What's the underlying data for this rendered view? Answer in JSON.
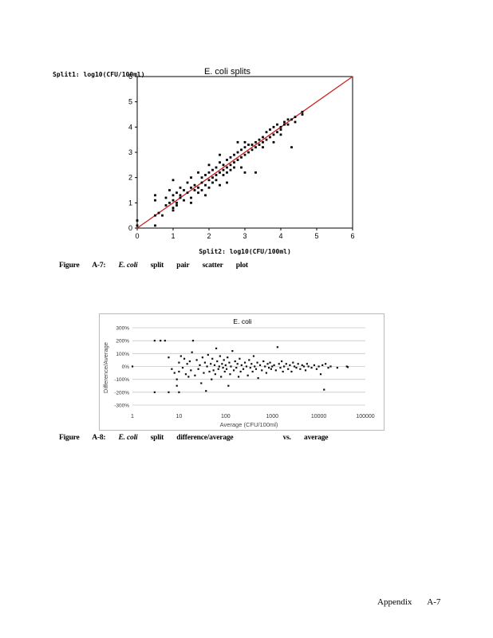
{
  "figure1": {
    "title": "E. coli splits",
    "y_axis_label": "Split1: log10(CFU/100ml)",
    "x_axis_label": "Split2: log10(CFU/100ml)",
    "caption": {
      "figure": "Figure",
      "number": "A-7:",
      "e": "E.",
      "coli": "coli",
      "w1": "split",
      "w2": "pair",
      "w3": "scatter",
      "w4": "plot"
    },
    "line_color": "#cc2222"
  },
  "figure2": {
    "title": "E. coli",
    "y_axis_label": "Difference/Average",
    "x_axis_label": "Average (CFU/100ml)",
    "caption": {
      "figure": "Figure",
      "number": "A-8:",
      "e": "E.",
      "coli": "coli",
      "w1": "split",
      "w2": "difference/average",
      "w3": "vs.",
      "w4": "average"
    }
  },
  "footer": {
    "appendix": "Appendix",
    "page": "A-7"
  },
  "chart_data": [
    {
      "type": "scatter",
      "title": "E. coli splits",
      "xlabel": "Split2: log10(CFU/100ml)",
      "ylabel": "Split1: log10(CFU/100ml)",
      "xlim": [
        0,
        6
      ],
      "ylim": [
        0,
        6
      ],
      "xticks": [
        "0",
        "1",
        "2",
        "3",
        "4",
        "5",
        "6"
      ],
      "yticks": [
        "0",
        "1",
        "2",
        "3",
        "4",
        "5",
        "6"
      ],
      "reference_line": "y = x",
      "grid": false,
      "points": [
        [
          0.0,
          0.3
        ],
        [
          0.0,
          0.1
        ],
        [
          0.5,
          1.3
        ],
        [
          0.5,
          1.1
        ],
        [
          0.5,
          0.5
        ],
        [
          0.5,
          0.1
        ],
        [
          0.6,
          0.6
        ],
        [
          0.7,
          0.5
        ],
        [
          0.8,
          0.9
        ],
        [
          0.8,
          1.2
        ],
        [
          0.9,
          1.0
        ],
        [
          0.9,
          1.5
        ],
        [
          1.0,
          0.8
        ],
        [
          1.0,
          1.1
        ],
        [
          1.0,
          1.3
        ],
        [
          1.0,
          0.7
        ],
        [
          1.0,
          1.9
        ],
        [
          1.1,
          1.0
        ],
        [
          1.1,
          1.4
        ],
        [
          1.1,
          0.9
        ],
        [
          1.2,
          1.2
        ],
        [
          1.2,
          1.6
        ],
        [
          1.2,
          1.3
        ],
        [
          1.3,
          1.1
        ],
        [
          1.3,
          1.5
        ],
        [
          1.4,
          1.4
        ],
        [
          1.4,
          1.8
        ],
        [
          1.5,
          1.2
        ],
        [
          1.5,
          1.6
        ],
        [
          1.5,
          1.0
        ],
        [
          1.5,
          2.0
        ],
        [
          1.6,
          1.5
        ],
        [
          1.6,
          1.7
        ],
        [
          1.7,
          1.6
        ],
        [
          1.7,
          1.4
        ],
        [
          1.7,
          2.2
        ],
        [
          1.8,
          1.8
        ],
        [
          1.8,
          1.5
        ],
        [
          1.8,
          2.0
        ],
        [
          1.9,
          1.7
        ],
        [
          1.9,
          2.1
        ],
        [
          1.9,
          1.3
        ],
        [
          2.0,
          1.9
        ],
        [
          2.0,
          2.2
        ],
        [
          2.0,
          1.6
        ],
        [
          2.0,
          2.5
        ],
        [
          2.1,
          2.0
        ],
        [
          2.1,
          1.8
        ],
        [
          2.1,
          2.3
        ],
        [
          2.2,
          2.1
        ],
        [
          2.2,
          2.4
        ],
        [
          2.2,
          1.9
        ],
        [
          2.3,
          2.2
        ],
        [
          2.3,
          2.6
        ],
        [
          2.3,
          1.7
        ],
        [
          2.3,
          2.9
        ],
        [
          2.4,
          2.3
        ],
        [
          2.4,
          2.1
        ],
        [
          2.4,
          2.5
        ],
        [
          2.5,
          2.4
        ],
        [
          2.5,
          2.7
        ],
        [
          2.5,
          2.2
        ],
        [
          2.5,
          1.8
        ],
        [
          2.6,
          2.5
        ],
        [
          2.6,
          2.8
        ],
        [
          2.6,
          2.3
        ],
        [
          2.7,
          2.6
        ],
        [
          2.7,
          2.9
        ],
        [
          2.7,
          2.4
        ],
        [
          2.8,
          2.7
        ],
        [
          2.8,
          3.0
        ],
        [
          2.8,
          3.4
        ],
        [
          2.9,
          2.8
        ],
        [
          2.9,
          3.1
        ],
        [
          2.9,
          2.4
        ],
        [
          3.0,
          2.9
        ],
        [
          3.0,
          3.2
        ],
        [
          3.0,
          3.4
        ],
        [
          3.0,
          2.2
        ],
        [
          3.1,
          3.0
        ],
        [
          3.1,
          3.3
        ],
        [
          3.2,
          3.1
        ],
        [
          3.2,
          3.3
        ],
        [
          3.3,
          3.2
        ],
        [
          3.3,
          3.4
        ],
        [
          3.3,
          2.2
        ],
        [
          3.4,
          3.3
        ],
        [
          3.4,
          3.5
        ],
        [
          3.5,
          3.4
        ],
        [
          3.5,
          3.6
        ],
        [
          3.5,
          3.2
        ],
        [
          3.6,
          3.5
        ],
        [
          3.6,
          3.8
        ],
        [
          3.7,
          3.6
        ],
        [
          3.7,
          3.9
        ],
        [
          3.8,
          3.7
        ],
        [
          3.8,
          4.0
        ],
        [
          3.8,
          3.4
        ],
        [
          3.9,
          3.8
        ],
        [
          3.9,
          4.1
        ],
        [
          4.0,
          3.9
        ],
        [
          4.0,
          4.0
        ],
        [
          4.0,
          3.7
        ],
        [
          4.1,
          4.1
        ],
        [
          4.1,
          4.2
        ],
        [
          4.2,
          4.1
        ],
        [
          4.2,
          4.3
        ],
        [
          4.3,
          3.2
        ],
        [
          4.3,
          4.3
        ],
        [
          4.4,
          4.2
        ],
        [
          4.4,
          4.4
        ],
        [
          4.6,
          4.5
        ],
        [
          4.6,
          4.6
        ]
      ]
    },
    {
      "type": "scatter",
      "title": "E. coli",
      "xlabel": "Average (CFU/100ml)",
      "ylabel": "Difference/Average",
      "x_scale": "log",
      "xlim": [
        1,
        100000
      ],
      "ylim": [
        -300,
        300
      ],
      "xticks": [
        "1",
        "10",
        "100",
        "1000",
        "10000",
        "100000"
      ],
      "yticks": [
        "300%",
        "200%",
        "100%",
        "0%",
        "-100%",
        "-200%",
        "-300%"
      ],
      "grid": true,
      "points": [
        [
          1,
          0
        ],
        [
          3,
          200
        ],
        [
          4,
          200
        ],
        [
          5,
          200
        ],
        [
          6,
          70
        ],
        [
          3,
          -200
        ],
        [
          6,
          -200
        ],
        [
          10,
          -200
        ],
        [
          7,
          -20
        ],
        [
          8,
          -50
        ],
        [
          9,
          -100
        ],
        [
          9,
          -150
        ],
        [
          10,
          30
        ],
        [
          10,
          -40
        ],
        [
          11,
          80
        ],
        [
          12,
          -10
        ],
        [
          13,
          60
        ],
        [
          14,
          -60
        ],
        [
          15,
          20
        ],
        [
          16,
          -80
        ],
        [
          17,
          40
        ],
        [
          18,
          -30
        ],
        [
          19,
          110
        ],
        [
          20,
          200
        ],
        [
          22,
          -70
        ],
        [
          24,
          50
        ],
        [
          26,
          -20
        ],
        [
          28,
          10
        ],
        [
          30,
          -130
        ],
        [
          32,
          70
        ],
        [
          34,
          -50
        ],
        [
          36,
          30
        ],
        [
          38,
          -190
        ],
        [
          40,
          0
        ],
        [
          42,
          90
        ],
        [
          45,
          -40
        ],
        [
          48,
          20
        ],
        [
          50,
          -100
        ],
        [
          52,
          60
        ],
        [
          55,
          -30
        ],
        [
          58,
          10
        ],
        [
          60,
          -60
        ],
        [
          63,
          140
        ],
        [
          66,
          40
        ],
        [
          70,
          -20
        ],
        [
          73,
          0
        ],
        [
          76,
          80
        ],
        [
          80,
          -80
        ],
        [
          84,
          20
        ],
        [
          88,
          -10
        ],
        [
          92,
          50
        ],
        [
          96,
          -40
        ],
        [
          100,
          10
        ],
        [
          105,
          -20
        ],
        [
          110,
          70
        ],
        [
          115,
          -150
        ],
        [
          120,
          30
        ],
        [
          125,
          -60
        ],
        [
          130,
          0
        ],
        [
          140,
          120
        ],
        [
          150,
          -30
        ],
        [
          160,
          40
        ],
        [
          170,
          -10
        ],
        [
          180,
          20
        ],
        [
          190,
          -80
        ],
        [
          200,
          60
        ],
        [
          210,
          -40
        ],
        [
          220,
          10
        ],
        [
          240,
          -20
        ],
        [
          260,
          30
        ],
        [
          280,
          0
        ],
        [
          300,
          -70
        ],
        [
          320,
          50
        ],
        [
          340,
          -10
        ],
        [
          360,
          20
        ],
        [
          380,
          -40
        ],
        [
          400,
          80
        ],
        [
          420,
          0
        ],
        [
          450,
          -20
        ],
        [
          480,
          30
        ],
        [
          500,
          -90
        ],
        [
          550,
          10
        ],
        [
          600,
          -30
        ],
        [
          650,
          40
        ],
        [
          700,
          0
        ],
        [
          750,
          -50
        ],
        [
          800,
          20
        ],
        [
          850,
          -10
        ],
        [
          900,
          30
        ],
        [
          950,
          -20
        ],
        [
          1000,
          0
        ],
        [
          1100,
          10
        ],
        [
          1200,
          -30
        ],
        [
          1300,
          150
        ],
        [
          1400,
          20
        ],
        [
          1500,
          -10
        ],
        [
          1600,
          40
        ],
        [
          1700,
          -40
        ],
        [
          1800,
          0
        ],
        [
          2000,
          20
        ],
        [
          2200,
          -20
        ],
        [
          2400,
          10
        ],
        [
          2600,
          -40
        ],
        [
          2800,
          30
        ],
        [
          3000,
          0
        ],
        [
          3300,
          -10
        ],
        [
          3600,
          20
        ],
        [
          4000,
          -20
        ],
        [
          4400,
          10
        ],
        [
          4800,
          0
        ],
        [
          5200,
          -30
        ],
        [
          5600,
          20
        ],
        [
          6000,
          0
        ],
        [
          7000,
          -10
        ],
        [
          8000,
          10
        ],
        [
          9000,
          -20
        ],
        [
          10000,
          0
        ],
        [
          11000,
          -60
        ],
        [
          12000,
          10
        ],
        [
          13000,
          -180
        ],
        [
          14000,
          20
        ],
        [
          16000,
          -10
        ],
        [
          18000,
          0
        ],
        [
          25000,
          -10
        ],
        [
          40000,
          0
        ],
        [
          42000,
          -5
        ]
      ]
    }
  ]
}
